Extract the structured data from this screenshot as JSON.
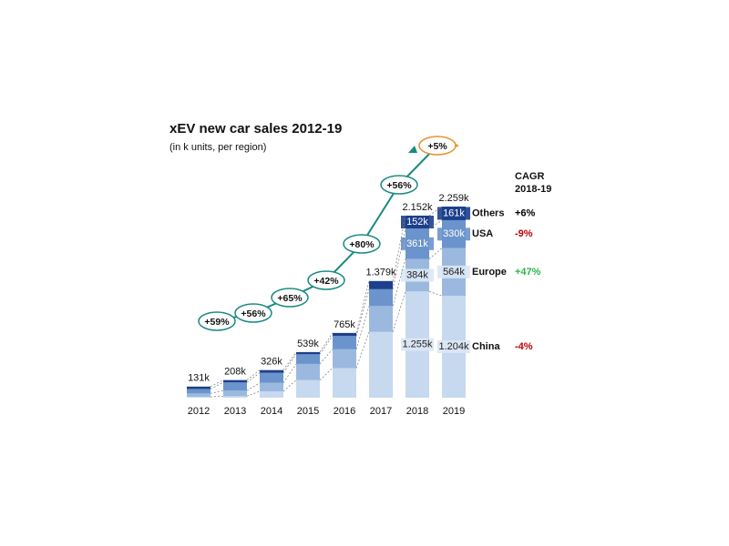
{
  "chart_data": {
    "type": "stacked_bar",
    "title": "xEV new car sales 2012-19",
    "subtitle": "(in k units, per region)",
    "categories": [
      "2012",
      "2013",
      "2014",
      "2015",
      "2016",
      "2017",
      "2018",
      "2019"
    ],
    "series": [
      {
        "name": "China",
        "color": "#c6d9ef",
        "values": [
          10,
          18,
          75,
          207,
          350,
          777,
          1255,
          1204
        ],
        "value_labels": [
          null,
          null,
          null,
          null,
          null,
          null,
          "1.255k",
          "1.204k"
        ],
        "cagr": "-4%",
        "cagr_color": "#c00000"
      },
      {
        "name": "Europe",
        "color": "#9bb9df",
        "values": [
          40,
          65,
          100,
          192,
          222,
          306,
          384,
          564
        ],
        "value_labels": [
          null,
          null,
          null,
          null,
          null,
          null,
          "384k",
          "564k"
        ],
        "cagr": "+47%",
        "cagr_color": "#2db34a"
      },
      {
        "name": "USA",
        "color": "#6b94cc",
        "values": [
          53,
          97,
          119,
          114,
          157,
          199,
          361,
          330
        ],
        "value_labels": [
          null,
          null,
          null,
          null,
          null,
          null,
          "361k",
          "330k"
        ],
        "cagr": "-9%",
        "cagr_color": "#c00000"
      },
      {
        "name": "Others",
        "color": "#1d3f8c",
        "values": [
          28,
          28,
          32,
          26,
          36,
          97,
          152,
          161
        ],
        "value_labels": [
          null,
          null,
          null,
          null,
          null,
          null,
          "152k",
          "161k"
        ],
        "cagr": "+6%",
        "cagr_color": "#000000"
      }
    ],
    "totals": {
      "values": [
        131,
        208,
        326,
        539,
        765,
        1379,
        2152,
        2259
      ],
      "value_labels": [
        "131k",
        "208k",
        "326k",
        "539k",
        "765k",
        "1.379k",
        "2.152k",
        "2.259k"
      ]
    },
    "growth": [
      "+59%",
      "+56%",
      "+65%",
      "+42%",
      "+80%",
      "+56%",
      "+5%"
    ],
    "cagr_title": [
      "CAGR",
      "2018-19"
    ]
  }
}
